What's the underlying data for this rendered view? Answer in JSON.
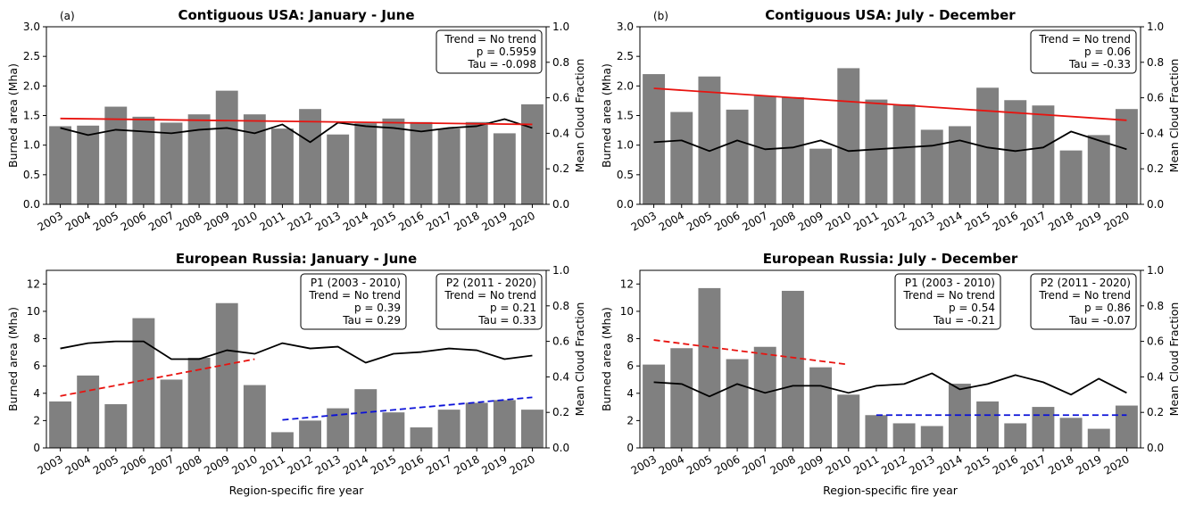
{
  "chart_data": [
    {
      "type": "bar",
      "panel_label": "(a)",
      "title": "Contiguous USA: January - June",
      "xlabel": "",
      "ylabel": "Burned area (Mha)",
      "ylabel_right": "Mean Cloud Fraction",
      "ylim": [
        0,
        3.0
      ],
      "yticks": [
        "0.0",
        "0.5",
        "1.0",
        "1.5",
        "2.0",
        "2.5",
        "3.0"
      ],
      "ylim_right": [
        0,
        1.0
      ],
      "yticks_right": [
        "0.0",
        "0.2",
        "0.4",
        "0.6",
        "0.8",
        "1.0"
      ],
      "categories": [
        "2003",
        "2004",
        "2005",
        "2006",
        "2007",
        "2008",
        "2009",
        "2010",
        "2011",
        "2012",
        "2013",
        "2014",
        "2015",
        "2016",
        "2017",
        "2018",
        "2019",
        "2020"
      ],
      "bar_color": "#808080",
      "values": [
        1.32,
        1.33,
        1.65,
        1.48,
        1.38,
        1.52,
        1.92,
        1.52,
        1.28,
        1.61,
        1.18,
        1.37,
        1.45,
        1.39,
        1.28,
        1.39,
        1.2,
        1.69
      ],
      "cloud_fraction": [
        0.43,
        0.39,
        0.42,
        0.41,
        0.4,
        0.42,
        0.43,
        0.4,
        0.45,
        0.35,
        0.46,
        0.44,
        0.43,
        0.41,
        0.43,
        0.44,
        0.48,
        0.43
      ],
      "trends": [
        {
          "x_range": [
            "2003",
            "2020"
          ],
          "y": [
            1.45,
            1.35
          ],
          "color": "#e8130f",
          "dashed": false
        }
      ],
      "boxes": [
        {
          "lines": [
            "Trend = No trend",
            "p = 0.5959",
            "Tau = -0.098"
          ]
        }
      ]
    },
    {
      "type": "bar",
      "panel_label": "(b)",
      "title": "Contiguous USA: July - December",
      "xlabel": "",
      "ylabel": "Burned area (Mha)",
      "ylabel_right": "Mean Cloud Fraction",
      "ylim": [
        0,
        3.0
      ],
      "yticks": [
        "0.0",
        "0.5",
        "1.0",
        "1.5",
        "2.0",
        "2.5",
        "3.0"
      ],
      "ylim_right": [
        0,
        1.0
      ],
      "yticks_right": [
        "0.0",
        "0.2",
        "0.4",
        "0.6",
        "0.8",
        "1.0"
      ],
      "categories": [
        "2003",
        "2004",
        "2005",
        "2006",
        "2007",
        "2008",
        "2009",
        "2010",
        "2011",
        "2012",
        "2013",
        "2014",
        "2015",
        "2016",
        "2017",
        "2018",
        "2019",
        "2020"
      ],
      "bar_color": "#808080",
      "values": [
        2.2,
        1.56,
        2.16,
        1.6,
        1.83,
        1.81,
        0.94,
        2.3,
        1.77,
        1.69,
        1.26,
        1.32,
        1.97,
        1.76,
        1.67,
        0.91,
        1.17,
        1.61
      ],
      "cloud_fraction": [
        0.35,
        0.36,
        0.3,
        0.36,
        0.31,
        0.32,
        0.36,
        0.3,
        0.31,
        0.32,
        0.33,
        0.36,
        0.32,
        0.3,
        0.32,
        0.41,
        0.36,
        0.31
      ],
      "trends": [
        {
          "x_range": [
            "2003",
            "2020"
          ],
          "y": [
            1.96,
            1.42
          ],
          "color": "#e8130f",
          "dashed": false
        }
      ],
      "boxes": [
        {
          "lines": [
            "Trend = No trend",
            "p = 0.06",
            "Tau = -0.33"
          ]
        }
      ]
    },
    {
      "type": "bar",
      "panel_label": "",
      "title": "European Russia: January - June",
      "xlabel": "Region-specific fire year",
      "ylabel": "Burned area (Mha)",
      "ylabel_right": "Mean Cloud Fraction",
      "ylim": [
        0,
        13
      ],
      "yticks": [
        "0",
        "2",
        "4",
        "6",
        "8",
        "10",
        "12"
      ],
      "ylim_right": [
        0,
        1.0
      ],
      "yticks_right": [
        "0.0",
        "0.2",
        "0.4",
        "0.6",
        "0.8",
        "1.0"
      ],
      "categories": [
        "2003",
        "2004",
        "2005",
        "2006",
        "2007",
        "2008",
        "2009",
        "2010",
        "2011",
        "2012",
        "2013",
        "2014",
        "2015",
        "2016",
        "2017",
        "2018",
        "2019",
        "2020"
      ],
      "bar_color": "#808080",
      "values": [
        3.4,
        5.3,
        3.2,
        9.5,
        5.0,
        6.6,
        10.6,
        4.6,
        1.15,
        2.0,
        2.9,
        4.3,
        2.6,
        1.5,
        2.8,
        3.3,
        3.5,
        2.8
      ],
      "cloud_fraction": [
        0.56,
        0.59,
        0.6,
        0.6,
        0.5,
        0.5,
        0.55,
        0.53,
        0.59,
        0.56,
        0.57,
        0.48,
        0.53,
        0.54,
        0.56,
        0.55,
        0.5,
        0.52
      ],
      "trends": [
        {
          "x_range": [
            "2003",
            "2010"
          ],
          "y": [
            3.8,
            6.5
          ],
          "color": "#e8130f",
          "dashed": true
        },
        {
          "x_range": [
            "2011",
            "2020"
          ],
          "y": [
            2.05,
            3.7
          ],
          "color": "#0a10d8",
          "dashed": true
        }
      ],
      "boxes": [
        {
          "lines": [
            "P1 (2003 - 2010)",
            "Trend = No trend",
            "p = 0.39",
            "Tau = 0.29"
          ]
        },
        {
          "lines": [
            "P2 (2011 - 2020)",
            "Trend = No trend",
            "p = 0.21",
            "Tau = 0.33"
          ]
        }
      ]
    },
    {
      "type": "bar",
      "panel_label": "",
      "title": "European Russia: July - December",
      "xlabel": "Region-specific fire year",
      "ylabel": "Burned area (Mha)",
      "ylabel_right": "Mean Cloud Fraction",
      "ylim": [
        0,
        13
      ],
      "yticks": [
        "0",
        "2",
        "4",
        "6",
        "8",
        "10",
        "12"
      ],
      "ylim_right": [
        0,
        1.0
      ],
      "yticks_right": [
        "0.0",
        "0.2",
        "0.4",
        "0.6",
        "0.8",
        "1.0"
      ],
      "categories": [
        "2003",
        "2004",
        "2005",
        "2006",
        "2007",
        "2008",
        "2009",
        "2010",
        "2011",
        "2012",
        "2013",
        "2014",
        "2015",
        "2016",
        "2017",
        "2018",
        "2019",
        "2020"
      ],
      "bar_color": "#808080",
      "values": [
        6.1,
        7.3,
        11.7,
        6.5,
        7.4,
        11.5,
        5.9,
        3.9,
        2.4,
        1.8,
        1.6,
        4.7,
        3.4,
        1.8,
        3.0,
        2.2,
        1.4,
        3.1
      ],
      "cloud_fraction": [
        0.37,
        0.36,
        0.29,
        0.36,
        0.31,
        0.35,
        0.35,
        0.31,
        0.35,
        0.36,
        0.42,
        0.33,
        0.36,
        0.41,
        0.37,
        0.3,
        0.39,
        0.31
      ],
      "trends": [
        {
          "x_range": [
            "2003",
            "2010"
          ],
          "y": [
            7.9,
            6.1
          ],
          "color": "#e8130f",
          "dashed": true
        },
        {
          "x_range": [
            "2011",
            "2020"
          ],
          "y": [
            2.4,
            2.4
          ],
          "color": "#0a10d8",
          "dashed": true
        }
      ],
      "boxes": [
        {
          "lines": [
            "P1 (2003 - 2010)",
            "Trend = No trend",
            "p = 0.54",
            "Tau = -0.21"
          ]
        },
        {
          "lines": [
            "P2 (2011 - 2020)",
            "Trend = No trend",
            "p = 0.86",
            "Tau = -0.07"
          ]
        }
      ]
    }
  ]
}
